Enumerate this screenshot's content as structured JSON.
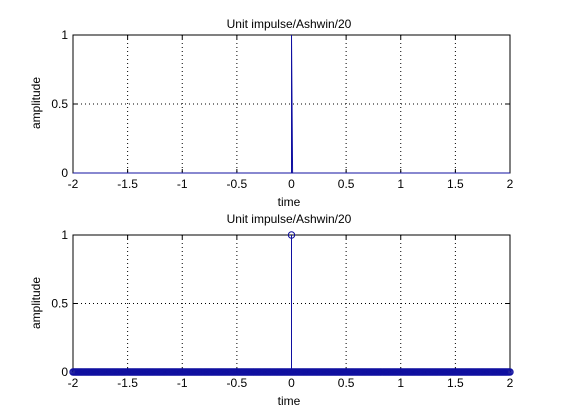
{
  "figure": {
    "background": "#ffffff",
    "axes_color": "#000000",
    "grid_color": "#000000",
    "line_color": "#1010a0"
  },
  "chart_data": [
    {
      "type": "line",
      "title": "Unit impulse/Ashwin/20",
      "xlabel": "time",
      "ylabel": "amplitude",
      "xlim": [
        -2,
        2
      ],
      "ylim": [
        0,
        1
      ],
      "xticks": [
        -2,
        -1.5,
        -1,
        -0.5,
        0,
        0.5,
        1,
        1.5,
        2
      ],
      "xtick_labels": [
        "-2",
        "-1.5",
        "-1",
        "-0.5",
        "0",
        "0.5",
        "1",
        "1.5",
        "2"
      ],
      "yticks": [
        0,
        0.5,
        1
      ],
      "ytick_labels": [
        "0",
        "0.5",
        "1"
      ],
      "grid": true,
      "series": [
        {
          "x": [
            -2,
            -0.01,
            0,
            0,
            0.01,
            2
          ],
          "y": [
            0,
            0,
            0,
            1,
            0,
            0
          ],
          "marker": "none"
        }
      ]
    },
    {
      "type": "stem",
      "title": "Unit impulse/Ashwin/20",
      "xlabel": "time",
      "ylabel": "amplitude",
      "xlim": [
        -2,
        2
      ],
      "ylim": [
        0,
        1
      ],
      "xticks": [
        -2,
        -1.5,
        -1,
        -0.5,
        0,
        0.5,
        1,
        1.5,
        2
      ],
      "xtick_labels": [
        "-2",
        "-1.5",
        "-1",
        "-0.5",
        "0",
        "0.5",
        "1",
        "1.5",
        "2"
      ],
      "yticks": [
        0,
        0.5,
        1
      ],
      "ytick_labels": [
        "0",
        "0.5",
        "1"
      ],
      "grid": true,
      "series": [
        {
          "x_start": -2,
          "x_end": 2,
          "x_step": 0.01,
          "impulse_at": 0,
          "impulse_value": 1,
          "baseline_value": 0,
          "marker": "circle"
        }
      ]
    }
  ]
}
